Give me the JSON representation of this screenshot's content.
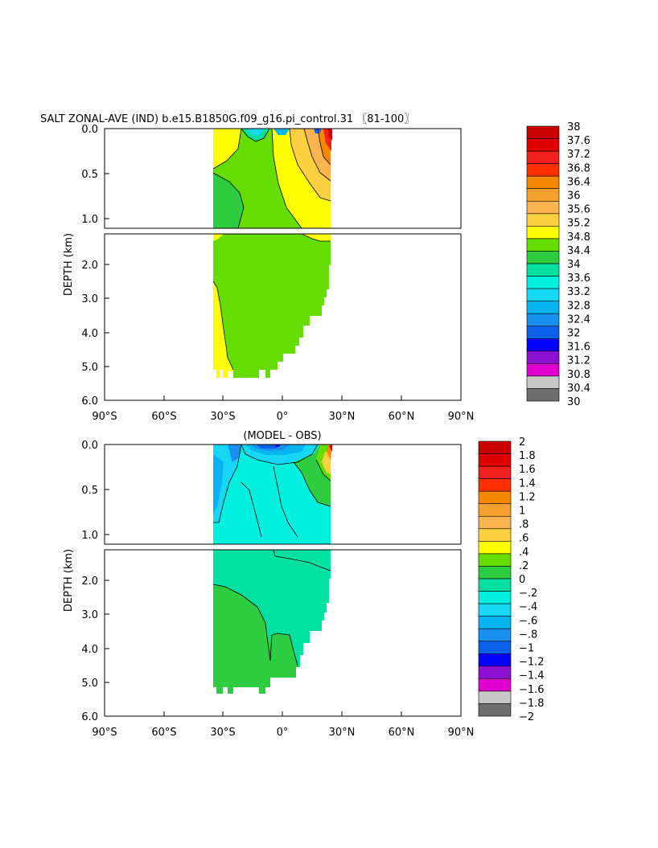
{
  "figure_title": "SALT ZONAL-AVE (IND) b.e15.B1850G.f09_g16.pi_control.31 〖81-100〗",
  "chart_data": [
    {
      "type": "heatmap",
      "title": "SALT ZONAL-AVE (IND) b.e15.B1850G.f09_g16.pi_control.31 〖81-100〗",
      "xlabel": "",
      "ylabel": "DEPTH (km)",
      "x_tick_labels": [
        "90°S",
        "60°S",
        "30°S",
        "0°",
        "30°N",
        "60°N",
        "90°N"
      ],
      "x_ticks": [
        -90,
        -60,
        -30,
        0,
        30,
        60,
        90
      ],
      "xlim": [
        -90,
        90
      ],
      "y_top_tick_labels": [
        "0.0",
        "0.5",
        "1.0"
      ],
      "y_top_ticks": [
        0,
        0.5,
        1.0
      ],
      "ylim_top": [
        0,
        1.1
      ],
      "y_bottom_tick_labels": [
        "2.0",
        "3.0",
        "4.0",
        "5.0",
        "6.0"
      ],
      "y_bottom_ticks": [
        2,
        3,
        4,
        5,
        6
      ],
      "ylim_bottom": [
        1.1,
        6
      ],
      "data_lat_range": [
        -35,
        25
      ],
      "colorbar_labels": [
        "38",
        "37.6",
        "37.2",
        "36.8",
        "36.4",
        "36",
        "35.6",
        "35.2",
        "34.8",
        "34.4",
        "34",
        "33.6",
        "33.2",
        "32.8",
        "32.4",
        "32",
        "31.6",
        "31.2",
        "30.8",
        "30.4",
        "30"
      ],
      "colorbar_colors": [
        "#c80000",
        "#e10000",
        "#f02020",
        "#ff3000",
        "#f58800",
        "#f6a030",
        "#fab450",
        "#fcd040",
        "#ffff00",
        "#66dd00",
        "#2ecc40",
        "#00e0a0",
        "#00f0e0",
        "#16d8f5",
        "#06b4f0",
        "#1890f0",
        "#0a60e8",
        "#0000ff",
        "#8c10d0",
        "#e000d0",
        "#c8c8c8",
        "#6e6e6e"
      ],
      "regions": {
        "upper_south_fill": 34.6,
        "upper_north_fill": 35.0,
        "upper_surface_north_max": 37.0,
        "deep_fill": 34.6,
        "deep_south_fill": 34.9
      }
    },
    {
      "type": "heatmap",
      "title": "(MODEL - OBS)",
      "xlabel": "",
      "ylabel": "DEPTH (km)",
      "x_tick_labels": [
        "90°S",
        "60°S",
        "30°S",
        "0°",
        "30°N",
        "60°N",
        "90°N"
      ],
      "x_ticks": [
        -90,
        -60,
        -30,
        0,
        30,
        60,
        90
      ],
      "xlim": [
        -90,
        90
      ],
      "y_top_tick_labels": [
        "0.0",
        "0.5",
        "1.0"
      ],
      "y_top_ticks": [
        0,
        0.5,
        1.0
      ],
      "ylim_top": [
        0,
        1.1
      ],
      "y_bottom_tick_labels": [
        "2.0",
        "3.0",
        "4.0",
        "5.0",
        "6.0"
      ],
      "y_bottom_ticks": [
        2,
        3,
        4,
        5,
        6
      ],
      "ylim_bottom": [
        1.1,
        6
      ],
      "data_lat_range": [
        -35,
        25
      ],
      "colorbar_labels": [
        "2",
        "1.8",
        "1.6",
        "1.4",
        "1.2",
        "1",
        ".8",
        ".6",
        ".4",
        ".2",
        "0",
        "−.2",
        "−.4",
        "−.6",
        "−.8",
        "−1",
        "−1.2",
        "−1.4",
        "−1.6",
        "−1.8",
        "−2"
      ],
      "colorbar_colors": [
        "#c80000",
        "#e10000",
        "#f02020",
        "#ff3000",
        "#f58800",
        "#f6a030",
        "#fab450",
        "#fcd040",
        "#ffff00",
        "#66dd00",
        "#2ecc40",
        "#00e0a0",
        "#00f0e0",
        "#16d8f5",
        "#06b4f0",
        "#1890f0",
        "#0a60e8",
        "#0000ff",
        "#8c10d0",
        "#e000d0",
        "#c8c8c8",
        "#6e6e6e"
      ],
      "regions": {
        "upper_fill": -0.3,
        "surface_south_min": -1.0,
        "surface_north_max": 2.0,
        "intermediate_fill": -0.1,
        "deep_fill": 0.1
      }
    }
  ]
}
